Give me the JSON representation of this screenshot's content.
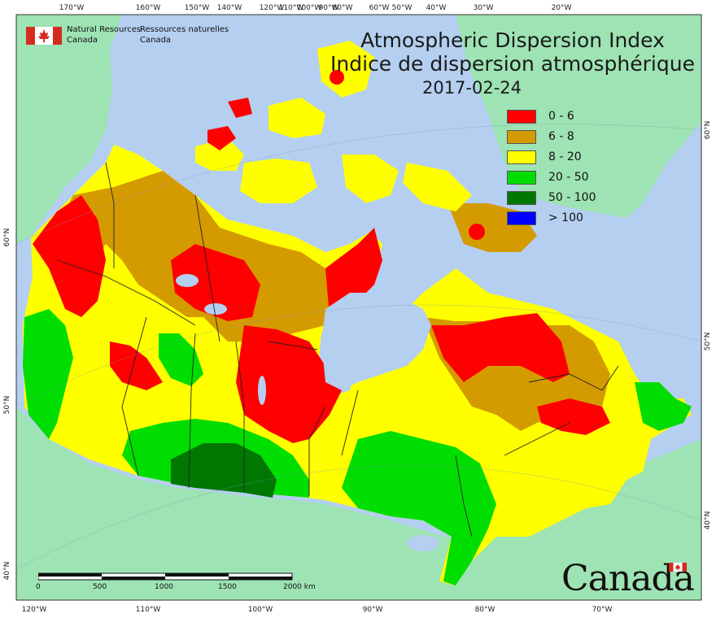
{
  "title": {
    "line1": "Atmospheric Dispersion Index",
    "line2": "Indice de dispersion atmosphérique",
    "date": "2017-02-24"
  },
  "agency": {
    "name_en_line1": "Natural Resources",
    "name_en_line2": "Canada",
    "name_fr_line1": "Ressources naturelles",
    "name_fr_line2": "Canada"
  },
  "wordmark": "Canada",
  "legend": {
    "items": [
      {
        "label": "0 - 6",
        "color": "#ff0000"
      },
      {
        "label": "6 - 8",
        "color": "#d49b00"
      },
      {
        "label": "8 - 20",
        "color": "#ffff00"
      },
      {
        "label": "20 - 50",
        "color": "#00dd00"
      },
      {
        "label": "50 - 100",
        "color": "#007700"
      },
      {
        "label": "> 100",
        "color": "#0000ff"
      }
    ]
  },
  "scale_bar": {
    "labels": [
      "0",
      "500",
      "1000",
      "1500",
      "2000 km"
    ]
  },
  "graticule": {
    "top_labels": [
      "170°W",
      "160°W",
      "150°W",
      "140°W",
      "120°W",
      "110°W",
      "100°W",
      "90°W",
      "80°W",
      "60°W",
      "50°W",
      "40°W",
      "30°W",
      "20°W"
    ],
    "bottom_labels": [
      "120°W",
      "110°W",
      "100°W",
      "90°W",
      "80°W",
      "70°W"
    ],
    "left_labels": [
      "60°N",
      "50°N",
      "40°N"
    ],
    "right_labels": [
      "60°N",
      "50°N",
      "40°N"
    ]
  },
  "colors": {
    "ocean": "#b4cff0",
    "land_outside": "#9ee3b3",
    "frame": "#333333"
  }
}
